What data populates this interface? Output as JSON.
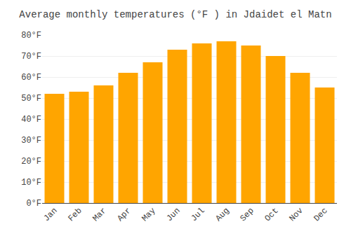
{
  "chart_data": {
    "type": "bar",
    "title": "Average monthly temperatures (°F ) in Jdaidet el Matn",
    "categories": [
      "Jan",
      "Feb",
      "Mar",
      "Apr",
      "May",
      "Jun",
      "Jul",
      "Aug",
      "Sep",
      "Oct",
      "Nov",
      "Dec"
    ],
    "values": [
      52,
      53,
      56,
      62,
      67,
      73,
      76,
      77,
      75,
      70,
      62,
      55
    ],
    "color": "#FFA500",
    "ylim": [
      0,
      80
    ],
    "yticks": [
      {
        "value": 0,
        "label": "0°F"
      },
      {
        "value": 10,
        "label": "10°F"
      },
      {
        "value": 20,
        "label": "20°F"
      },
      {
        "value": 30,
        "label": "30°F"
      },
      {
        "value": 40,
        "label": "40°F"
      },
      {
        "value": 50,
        "label": "50°F"
      },
      {
        "value": 60,
        "label": "60°F"
      },
      {
        "value": 70,
        "label": "70°F"
      },
      {
        "value": 80,
        "label": "80°F"
      }
    ],
    "grid": true
  }
}
